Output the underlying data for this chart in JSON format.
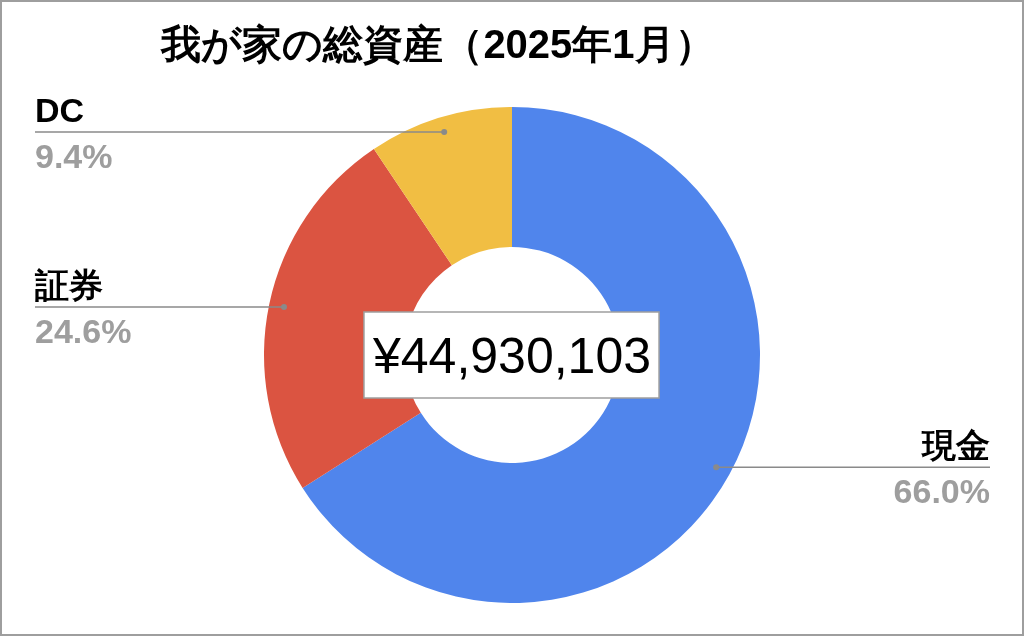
{
  "chart_data": {
    "type": "donut",
    "title": "我が家の総資産（2025年1月）",
    "categories": [
      "現金",
      "証券",
      "DC"
    ],
    "values": [
      66.0,
      24.6,
      9.4
    ],
    "colors": [
      "#5085ec",
      "#db5441",
      "#f1be43"
    ],
    "value_labels": [
      "66.0%",
      "24.6%",
      "9.4%"
    ],
    "annotations": [
      "¥44,930,103"
    ]
  }
}
